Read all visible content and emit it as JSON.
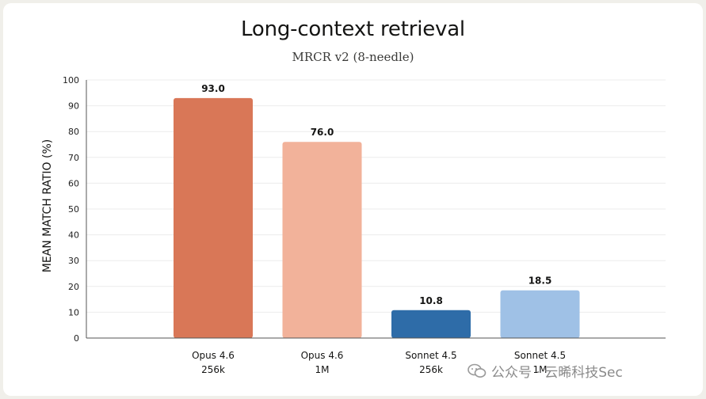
{
  "chart_data": {
    "type": "bar",
    "title": "Long-context retrieval",
    "subtitle": "MRCR v2 (8-needle)",
    "xlabel": "",
    "ylabel": "MEAN MATCH RATIO (%)",
    "ylim": [
      0,
      100
    ],
    "yticks": [
      0,
      10,
      20,
      30,
      40,
      50,
      60,
      70,
      80,
      90,
      100
    ],
    "grid": true,
    "categories": [
      {
        "line1": "Opus 4.6",
        "line2": "256k"
      },
      {
        "line1": "Opus 4.6",
        "line2": "1M"
      },
      {
        "line1": "Sonnet 4.5",
        "line2": "256k"
      },
      {
        "line1": "Sonnet 4.5",
        "line2": "1M"
      }
    ],
    "values": [
      93.0,
      76.0,
      10.8,
      18.5
    ],
    "value_labels": [
      "93.0",
      "76.0",
      "10.8",
      "18.5"
    ],
    "colors": [
      "#d97757",
      "#f2b29a",
      "#2e6ca8",
      "#9fc1e6"
    ]
  },
  "watermark": {
    "text": "公众号 · 云晞科技Sec",
    "icon": "wechat-icon"
  }
}
